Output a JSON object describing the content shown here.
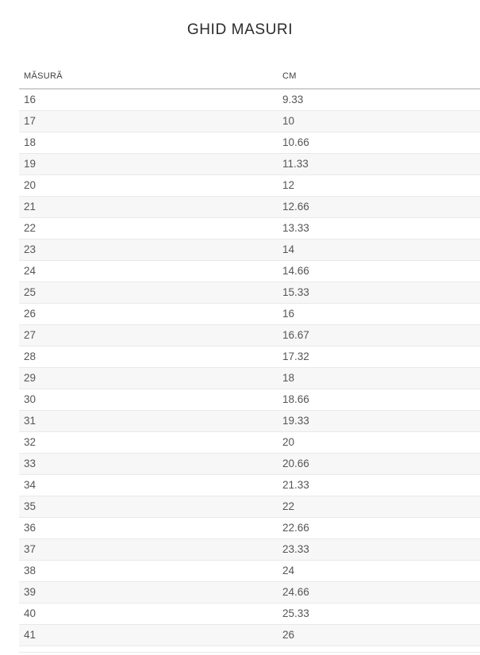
{
  "page": {
    "title": "GHID MASURI"
  },
  "table": {
    "columns": [
      "MĂSURĂ",
      "CM"
    ],
    "rows": [
      [
        "16",
        "9.33"
      ],
      [
        "17",
        "10"
      ],
      [
        "18",
        "10.66"
      ],
      [
        "19",
        "11.33"
      ],
      [
        "20",
        "12"
      ],
      [
        "21",
        "12.66"
      ],
      [
        "22",
        "13.33"
      ],
      [
        "23",
        "14"
      ],
      [
        "24",
        "14.66"
      ],
      [
        "25",
        "15.33"
      ],
      [
        "26",
        "16"
      ],
      [
        "27",
        "16.67"
      ],
      [
        "28",
        "17.32"
      ],
      [
        "29",
        "18"
      ],
      [
        "30",
        "18.66"
      ],
      [
        "31",
        "19.33"
      ],
      [
        "32",
        "20"
      ],
      [
        "33",
        "20.66"
      ],
      [
        "34",
        "21.33"
      ],
      [
        "35",
        "22"
      ],
      [
        "36",
        "22.66"
      ],
      [
        "37",
        "23.33"
      ],
      [
        "38",
        "24"
      ],
      [
        "39",
        "24.66"
      ],
      [
        "40",
        "25.33"
      ],
      [
        "41",
        "26"
      ]
    ]
  },
  "colors": {
    "title_text": "#2b2b2b",
    "header_text": "#3f3f3f",
    "cell_text": "#555555",
    "stripe_row_bg": "#f7f7f7",
    "row_border": "#e9e9e9",
    "header_border": "#d0d0d0",
    "page_bg": "#ffffff"
  }
}
